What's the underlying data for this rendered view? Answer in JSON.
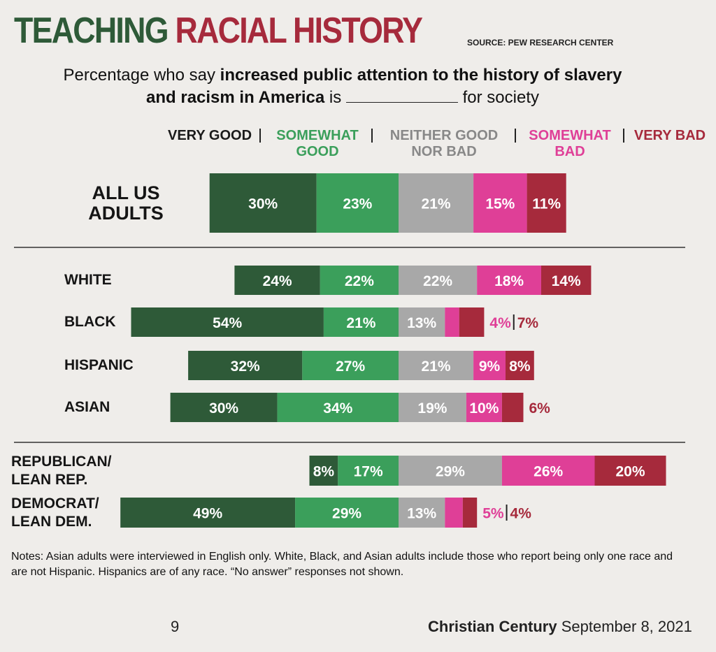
{
  "chart_data": {
    "type": "bar",
    "orientation": "horizontal",
    "stacked": true,
    "diverging": true,
    "title_dark": "TEACHING",
    "title_red": "RACIAL HISTORY",
    "source": "SOURCE: PEW RESEARCH CENTER",
    "subtitle": {
      "before": "Percentage who say",
      "bold": "increased public attention to the history of slavery and racism in America",
      "after": "is",
      "end": "for society"
    },
    "categories": [
      "ALL US ADULTS",
      "WHITE",
      "BLACK",
      "HISPANIC",
      "ASIAN",
      "REPUBLICAN/ LEAN REP.",
      "DEMOCRAT/ LEAN DEM."
    ],
    "series": [
      {
        "name": "VERY GOOD",
        "color": "#2e5a38",
        "values": [
          30,
          24,
          54,
          32,
          30,
          8,
          49
        ],
        "value_labels": [
          "30%",
          "24%",
          "54%",
          "32%",
          "30%",
          "8%",
          "49%"
        ]
      },
      {
        "name": "SOMEWHAT GOOD",
        "color": "#3b9f5b",
        "values": [
          23,
          22,
          21,
          27,
          34,
          17,
          29
        ],
        "value_labels": [
          "23%",
          "22%",
          "21%",
          "27%",
          "34%",
          "17%",
          "29%"
        ]
      },
      {
        "name": "NEITHER GOOD NOR BAD",
        "color": "#a8a8a8",
        "values": [
          21,
          22,
          13,
          21,
          19,
          29,
          13
        ],
        "value_labels": [
          "21%",
          "22%",
          "13%",
          "21%",
          "19%",
          "29%",
          "13%"
        ]
      },
      {
        "name": "SOMEWHAT BAD",
        "color": "#df3f97",
        "values": [
          15,
          18,
          4,
          9,
          10,
          26,
          5
        ],
        "value_labels": [
          "15%",
          "18%",
          "4%",
          "9%",
          "10%",
          "26%",
          "5%"
        ]
      },
      {
        "name": "VERY BAD",
        "color": "#a62a3c",
        "values": [
          11,
          14,
          7,
          8,
          6,
          20,
          4
        ],
        "value_labels": [
          "11%",
          "14%",
          "7%",
          "8%",
          "6%",
          "20%",
          "4%"
        ]
      }
    ],
    "notes": "Notes: Asian adults were interviewed in English only. White, Black, and Asian adults include those who report being only one race and are not Hispanic. Hispanics are of any race. “No answer” responses not shown.",
    "footer": {
      "page": "9",
      "magazine": "Christian Century",
      "date": "September 8, 2021"
    }
  }
}
